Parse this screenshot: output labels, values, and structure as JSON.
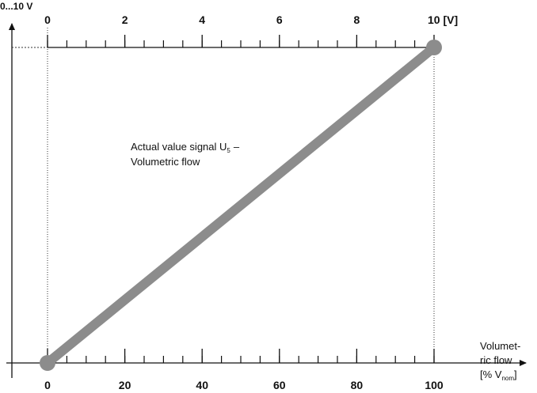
{
  "chart_data": {
    "type": "line",
    "y_label": "0...10 V",
    "x_label": {
      "line1": "Volumet-",
      "line2": "ric flow",
      "line3": "[% V",
      "line3_sub": "nom",
      "line3_end": "]"
    },
    "annotation": {
      "line1": "Actual value signal U",
      "line1_sub": "5",
      "line1_end": "–",
      "line2": "Volumetric flow"
    },
    "x": [
      0,
      100
    ],
    "series": [
      {
        "name": "Actual value signal",
        "color": "#8c8c8c",
        "values": [
          0,
          10
        ]
      }
    ],
    "xlim": [
      0,
      100
    ],
    "xticks": [
      0,
      20,
      40,
      60,
      80,
      100
    ],
    "xminor": 5,
    "x2lim": [
      0,
      10
    ],
    "x2ticks": [
      0,
      2,
      4,
      6,
      8,
      {
        "value": 10,
        "label": "10 [V]"
      }
    ],
    "x2minor": 0.5,
    "ylim": [
      0,
      10
    ]
  }
}
